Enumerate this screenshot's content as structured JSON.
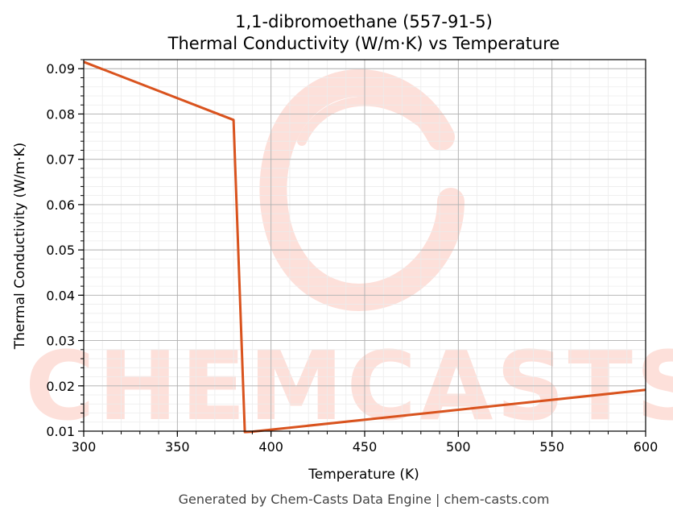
{
  "chart_data": {
    "type": "line",
    "title_line1": "1,1-dibromoethane (557-91-5)",
    "title_line2": "Thermal Conductivity (W/m·K) vs Temperature",
    "xlabel": "Temperature (K)",
    "ylabel": "Thermal Conductivity (W/m·K)",
    "xlim": [
      300,
      600
    ],
    "ylim": [
      0.01,
      0.092
    ],
    "x_ticks": [
      "300",
      "350",
      "400",
      "450",
      "500",
      "550",
      "600"
    ],
    "y_ticks": [
      "0.01",
      "0.02",
      "0.03",
      "0.04",
      "0.05",
      "0.06",
      "0.07",
      "0.08",
      "0.09"
    ],
    "grid": true,
    "series": [
      {
        "color": "#d9531e",
        "x": [
          300,
          380,
          386,
          390,
          600
        ],
        "y": [
          0.0915,
          0.0787,
          0.0098,
          0.0099,
          0.0191
        ]
      }
    ]
  },
  "watermark": {
    "text": "CHEMCASTS",
    "color": "#fde0da"
  },
  "footer": "Generated by Chem-Casts Data Engine | chem-casts.com"
}
